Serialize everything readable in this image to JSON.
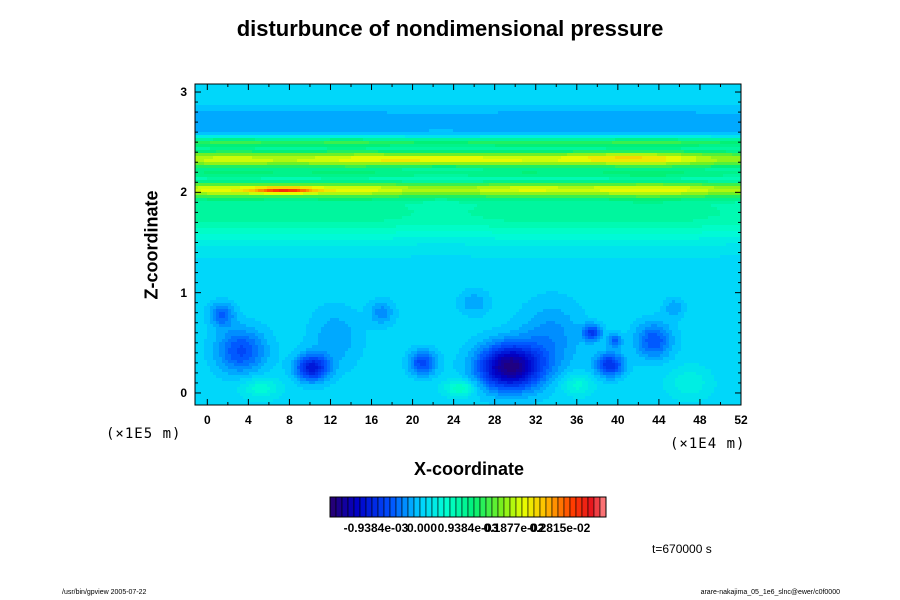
{
  "chart_data": {
    "type": "heatmap",
    "title": "disturbunce of nondimensional pressure",
    "xlabel": "X-coordinate",
    "ylabel": "Z-coordinate",
    "x_ticks": [
      "0",
      "4",
      "8",
      "12",
      "16",
      "20",
      "24",
      "28",
      "32",
      "36",
      "40",
      "44",
      "48",
      "52"
    ],
    "x_tick_values": [
      0,
      4,
      8,
      12,
      16,
      20,
      24,
      28,
      32,
      36,
      40,
      44,
      48,
      52
    ],
    "y_ticks": [
      "0",
      "1",
      "2",
      "3"
    ],
    "y_tick_values": [
      0,
      1,
      2,
      3
    ],
    "xlim": [
      -1.2,
      52
    ],
    "ylim": [
      -0.12,
      3.08
    ],
    "x_unit": "(×1E4 m)",
    "y_unit": "(×1E5 m)",
    "colorbar": {
      "tick_labels": [
        "-0.9384e-03",
        "0.000",
        "0.9384e-03",
        "0.1877e-02",
        "0.2815e-02"
      ],
      "tick_values": [
        -0.0009384,
        0,
        0.0009384,
        0.001877,
        0.002815
      ],
      "range": [
        -0.0018768,
        0.003754
      ]
    },
    "time_label": "t=670000 s",
    "background_level": 5e-05,
    "bands": [
      {
        "z": 2.03,
        "width": 0.08,
        "amp": 0.00155
      },
      {
        "z": 2.33,
        "width": 0.1,
        "amp": 0.0018
      },
      {
        "z": 2.5,
        "width": 0.05,
        "amp": 0.0011
      },
      {
        "z": 1.8,
        "width": 0.28,
        "amp": 0.00075
      },
      {
        "z": 2.7,
        "width": 0.15,
        "amp": -0.0003
      },
      {
        "z": 2.18,
        "width": 0.04,
        "amp": 0.0006
      }
    ],
    "hot_spots": [
      {
        "x": 7.5,
        "z": 2.02,
        "rx": 3.0,
        "rz": 0.03,
        "amp": 0.0012
      },
      {
        "x": 22,
        "z": 2.33,
        "rx": 7.0,
        "rz": 0.05,
        "amp": 0.0005
      },
      {
        "x": 40,
        "z": 2.34,
        "rx": 6.0,
        "rz": 0.05,
        "amp": 0.0004
      }
    ],
    "cold_spots": [
      {
        "x": 29.5,
        "z": 0.26,
        "rx": 3.0,
        "rz": 0.22,
        "amp": -0.0018
      },
      {
        "x": 10.2,
        "z": 0.25,
        "rx": 1.6,
        "rz": 0.13,
        "amp": -0.00115
      },
      {
        "x": 3.3,
        "z": 0.42,
        "rx": 2.4,
        "rz": 0.22,
        "amp": -0.00075
      },
      {
        "x": 1.4,
        "z": 0.78,
        "rx": 1.2,
        "rz": 0.12,
        "amp": -0.0006
      },
      {
        "x": 21.0,
        "z": 0.3,
        "rx": 1.3,
        "rz": 0.12,
        "amp": -0.0008
      },
      {
        "x": 39.2,
        "z": 0.28,
        "rx": 1.4,
        "rz": 0.12,
        "amp": -0.00095
      },
      {
        "x": 37.5,
        "z": 0.6,
        "rx": 0.9,
        "rz": 0.08,
        "amp": -0.00085
      },
      {
        "x": 39.7,
        "z": 0.52,
        "rx": 0.7,
        "rz": 0.07,
        "amp": -0.0006
      },
      {
        "x": 43.5,
        "z": 0.52,
        "rx": 1.8,
        "rz": 0.18,
        "amp": -0.0007
      },
      {
        "x": 33.5,
        "z": 0.55,
        "rx": 3.0,
        "rz": 0.35,
        "amp": -0.0004
      },
      {
        "x": 17.0,
        "z": 0.8,
        "rx": 1.2,
        "rz": 0.12,
        "amp": -0.0004
      },
      {
        "x": 26.0,
        "z": 0.9,
        "rx": 1.5,
        "rz": 0.12,
        "amp": -0.0003
      },
      {
        "x": 12.5,
        "z": 0.55,
        "rx": 2.5,
        "rz": 0.3,
        "amp": -0.0003
      },
      {
        "x": 45.5,
        "z": 0.85,
        "rx": 1.0,
        "rz": 0.1,
        "amp": -0.0003
      }
    ],
    "warm_low_spots": [
      {
        "x": 24.6,
        "z": 0.05,
        "rx": 1.4,
        "rz": 0.08,
        "amp": 0.0006
      },
      {
        "x": 5.2,
        "z": 0.05,
        "rx": 1.8,
        "rz": 0.1,
        "amp": 0.0004
      },
      {
        "x": 36.0,
        "z": 0.08,
        "rx": 1.5,
        "rz": 0.1,
        "amp": 0.0004
      },
      {
        "x": 47.0,
        "z": 0.1,
        "rx": 2.0,
        "rz": 0.15,
        "amp": 0.0003
      }
    ]
  },
  "footer": {
    "left": "/usr/bin/gpview 2005-07-22",
    "right": "arare-nakajima_05_1e6_slnc@ewer/c0f0000"
  }
}
